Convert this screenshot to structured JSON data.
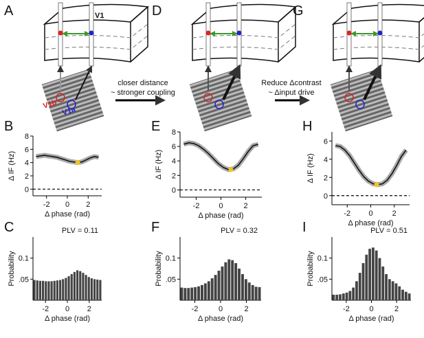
{
  "chart_data": [
    {
      "type": "line",
      "panel_label": "B",
      "ylabel": "Δ IF (Hz)",
      "xlabel": "Δ phase  (rad)",
      "x": [
        -3.0,
        -2.6,
        -2.2,
        -1.8,
        -1.4,
        -1.0,
        -0.6,
        -0.2,
        0.2,
        0.6,
        1.0,
        1.4,
        1.8,
        2.2,
        2.6,
        3.0
      ],
      "values": [
        4.9,
        5.0,
        5.1,
        5.0,
        4.9,
        4.8,
        4.6,
        4.4,
        4.2,
        4.1,
        4.0,
        4.1,
        4.4,
        4.7,
        4.9,
        4.8
      ],
      "color": "#111111",
      "marker": {
        "x": 1.0,
        "y": 4.0,
        "color": "#f5c518"
      },
      "reference_line": 0,
      "xlim": [
        -3.3,
        3.3
      ],
      "xticks": [
        -2,
        0,
        2
      ],
      "ylim": [
        -1,
        8
      ],
      "yticks": [
        0,
        2,
        4,
        6,
        8
      ]
    },
    {
      "type": "line",
      "panel_label": "E",
      "ylabel": "Δ IF (Hz)",
      "xlabel": "Δ phase  (rad)",
      "x": [
        -3.0,
        -2.6,
        -2.2,
        -1.8,
        -1.4,
        -1.0,
        -0.6,
        -0.2,
        0.2,
        0.6,
        1.0,
        1.4,
        1.8,
        2.2,
        2.6,
        3.0
      ],
      "values": [
        6.3,
        6.5,
        6.4,
        6.1,
        5.6,
        5.0,
        4.3,
        3.6,
        3.1,
        2.8,
        2.9,
        3.4,
        4.3,
        5.3,
        6.1,
        6.3
      ],
      "color": "#111111",
      "marker": {
        "x": 0.8,
        "y": 2.8,
        "color": "#f5c518"
      },
      "reference_line": 0,
      "xlim": [
        -3.3,
        3.3
      ],
      "xticks": [
        -2,
        0,
        2
      ],
      "ylim": [
        -1,
        8
      ],
      "yticks": [
        0,
        2,
        4,
        6,
        8
      ]
    },
    {
      "type": "line",
      "panel_label": "H",
      "ylabel": "Δ IF (Hz)",
      "xlabel": "Δ phase  (rad)",
      "x": [
        -3.0,
        -2.6,
        -2.2,
        -1.8,
        -1.4,
        -1.0,
        -0.6,
        -0.2,
        0.2,
        0.6,
        1.0,
        1.4,
        1.8,
        2.2,
        2.6,
        3.0
      ],
      "values": [
        5.5,
        5.4,
        5.0,
        4.4,
        3.6,
        2.8,
        2.1,
        1.6,
        1.3,
        1.2,
        1.3,
        1.7,
        2.4,
        3.3,
        4.3,
        5.0
      ],
      "color": "#111111",
      "marker": {
        "x": 0.5,
        "y": 1.2,
        "color": "#f5c518"
      },
      "reference_line": 0,
      "xlim": [
        -3.3,
        3.3
      ],
      "xticks": [
        -2,
        0,
        2
      ],
      "ylim": [
        -1,
        7
      ],
      "yticks": [
        0,
        2,
        4,
        6
      ]
    },
    {
      "type": "histogram",
      "panel_label": "C",
      "title": "PLV = 0.11",
      "ylabel": "Probability",
      "xlabel": "Δ phase  (rad)",
      "bins": [
        -3.142,
        -2.88,
        -2.618,
        -2.356,
        -2.094,
        -1.833,
        -1.571,
        -1.309,
        -1.047,
        -0.785,
        -0.524,
        -0.262,
        0,
        0.262,
        0.524,
        0.785,
        1.047,
        1.309,
        1.571,
        1.833,
        2.094,
        2.356,
        2.618,
        2.88,
        3.142
      ],
      "values": [
        0.048,
        0.047,
        0.046,
        0.046,
        0.045,
        0.045,
        0.045,
        0.046,
        0.047,
        0.048,
        0.05,
        0.053,
        0.057,
        0.062,
        0.067,
        0.071,
        0.069,
        0.065,
        0.06,
        0.055,
        0.052,
        0.05,
        0.049,
        0.048
      ],
      "color": "#444444",
      "xlim": [
        -3.142,
        3.142
      ],
      "xticks": [
        -2,
        0,
        2
      ],
      "ylim": [
        0,
        0.15
      ],
      "yticks": [
        {
          "value": 0.05,
          "label": ".05"
        },
        {
          "value": 0.1,
          "label": "0.1"
        }
      ]
    },
    {
      "type": "histogram",
      "panel_label": "F",
      "title": "PLV = 0.32",
      "ylabel": "Probability",
      "xlabel": "Δ phase  (rad)",
      "bins": [
        -3.142,
        -2.88,
        -2.618,
        -2.356,
        -2.094,
        -1.833,
        -1.571,
        -1.309,
        -1.047,
        -0.785,
        -0.524,
        -0.262,
        0,
        0.262,
        0.524,
        0.785,
        1.047,
        1.309,
        1.571,
        1.833,
        2.094,
        2.356,
        2.618,
        2.88,
        3.142
      ],
      "values": [
        0.03,
        0.029,
        0.029,
        0.03,
        0.031,
        0.033,
        0.036,
        0.04,
        0.045,
        0.052,
        0.06,
        0.07,
        0.08,
        0.09,
        0.097,
        0.095,
        0.088,
        0.075,
        0.062,
        0.05,
        0.042,
        0.036,
        0.032,
        0.031
      ],
      "color": "#444444",
      "xlim": [
        -3.142,
        3.142
      ],
      "xticks": [
        -2,
        0,
        2
      ],
      "ylim": [
        0,
        0.15
      ],
      "yticks": [
        {
          "value": 0.05,
          "label": ".05"
        },
        {
          "value": 0.1,
          "label": "0.1"
        }
      ]
    },
    {
      "type": "histogram",
      "panel_label": "I",
      "title": "PLV = 0.51",
      "ylabel": "Probability",
      "xlabel": "Δ phase  (rad)",
      "bins": [
        -3.142,
        -2.88,
        -2.618,
        -2.356,
        -2.094,
        -1.833,
        -1.571,
        -1.309,
        -1.047,
        -0.785,
        -0.524,
        -0.262,
        0,
        0.262,
        0.524,
        0.785,
        1.047,
        1.309,
        1.571,
        1.833,
        2.094,
        2.356,
        2.618,
        2.88,
        3.142
      ],
      "values": [
        0.013,
        0.013,
        0.014,
        0.016,
        0.018,
        0.022,
        0.03,
        0.045,
        0.065,
        0.088,
        0.108,
        0.122,
        0.125,
        0.118,
        0.1,
        0.08,
        0.062,
        0.05,
        0.045,
        0.04,
        0.033,
        0.025,
        0.02,
        0.016
      ],
      "color": "#444444",
      "xlim": [
        -3.142,
        3.142
      ],
      "xticks": [
        -2,
        0,
        2
      ],
      "ylim": [
        0,
        0.15
      ],
      "yticks": [
        {
          "value": 0.05,
          "label": ".05"
        },
        {
          "value": 0.1,
          "label": "0.1"
        }
      ]
    }
  ],
  "diagrams": [
    {
      "panel_label": "A",
      "area_label": "V1",
      "site_labels": [
        "V1b",
        "V1a"
      ]
    },
    {
      "panel_label": "D"
    },
    {
      "panel_label": "G"
    }
  ],
  "transitions": [
    {
      "lines": [
        "closer distance",
        "~ stronger coupling"
      ]
    },
    {
      "lines": [
        "Reduce Δcontrast",
        "~ Δinput drive"
      ]
    }
  ]
}
